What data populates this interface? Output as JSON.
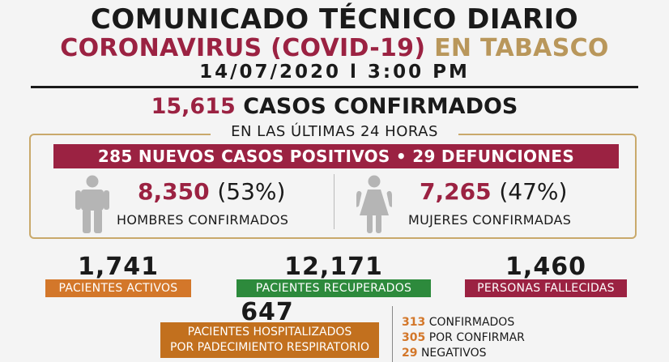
{
  "header": {
    "title": "COMUNICADO TÉCNICO DIARIO",
    "subtitle_main": "CORONAVIRUS (COVID-19)",
    "subtitle_place": "EN TABASCO",
    "date": "14/07/2020",
    "separator": "l",
    "time": "3:00 PM"
  },
  "confirmed": {
    "total": "15,615",
    "label": "CASOS CONFIRMADOS"
  },
  "last_24h": {
    "label": "EN LAS ÚLTIMAS 24 HORAS",
    "new_cases": "285 NUEVOS CASOS POSITIVOS",
    "deaths": "• 29 DEFUNCIONES"
  },
  "men": {
    "icon": "man-icon",
    "count": "8,350",
    "percent": "(53%)",
    "label": "HOMBRES CONFIRMADOS"
  },
  "women": {
    "icon": "woman-icon",
    "count": "7,265",
    "percent": "(47%)",
    "label": "MUJERES CONFIRMADAS"
  },
  "stats": {
    "active": {
      "value": "1,741",
      "label": "PACIENTES ACTIVOS"
    },
    "recovered": {
      "value": "12,171",
      "label": "PACIENTES RECUPERADOS"
    },
    "deceased": {
      "value": "1,460",
      "label": "PERSONAS FALLECIDAS"
    }
  },
  "hospitalized": {
    "value": "647",
    "label_line1": "PACIENTES HOSPITALIZADOS",
    "label_line2": "POR PADECIMIENTO RESPIRATORIO",
    "breakdown": [
      {
        "num": "313",
        "label": "CONFIRMADOS"
      },
      {
        "num": "305",
        "label": "POR CONFIRMAR"
      },
      {
        "num": "29",
        "label": "NEGATIVOS"
      }
    ]
  },
  "colors": {
    "wine": "#9b2242",
    "gold": "#b9975b",
    "orange": "#d3772a",
    "green": "#2d8a3c"
  }
}
